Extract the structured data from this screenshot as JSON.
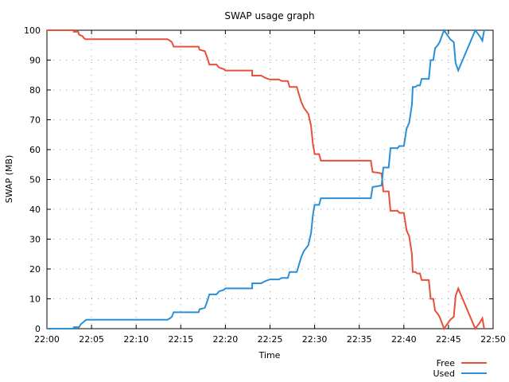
{
  "chart_data": {
    "type": "line",
    "title": "SWAP usage graph",
    "xlabel": "Time",
    "ylabel": "SWAP (MB)",
    "x_ticks": [
      "22:00",
      "22:05",
      "22:10",
      "22:15",
      "22:20",
      "22:25",
      "22:30",
      "22:35",
      "22:40",
      "22:45",
      "22:50"
    ],
    "y_ticks": [
      "0",
      "10",
      "20",
      "30",
      "40",
      "50",
      "60",
      "70",
      "80",
      "90",
      "100"
    ],
    "xlim": [
      "22:00",
      "22:50"
    ],
    "ylim": [
      0,
      100
    ],
    "grid": true,
    "legend_position": "bottom-right",
    "series": [
      {
        "name": "Free",
        "color": "#e8503a",
        "points": [
          [
            "22:00",
            100
          ],
          [
            "22:03",
            100
          ],
          [
            "22:03",
            99.5
          ],
          [
            "22:03.5",
            99.5
          ],
          [
            "22:03.6",
            98.5
          ],
          [
            "22:04",
            98
          ],
          [
            "22:04.1",
            97.5
          ],
          [
            "22:04.3",
            97
          ],
          [
            "22:13.5",
            97
          ],
          [
            "22:13.8",
            96.5
          ],
          [
            "22:14",
            96
          ],
          [
            "22:14.2",
            94.5
          ],
          [
            "22:17",
            94.5
          ],
          [
            "22:17.1",
            93.5
          ],
          [
            "22:17.7",
            93
          ],
          [
            "22:18",
            90.5
          ],
          [
            "22:18.2",
            88.5
          ],
          [
            "22:19",
            88.5
          ],
          [
            "22:19.3",
            87.5
          ],
          [
            "22:19.8",
            87
          ],
          [
            "22:20",
            86.5
          ],
          [
            "22:23",
            86.5
          ],
          [
            "22:23",
            84.8
          ],
          [
            "22:24",
            84.8
          ],
          [
            "22:24.5",
            84
          ],
          [
            "22:25",
            83.5
          ],
          [
            "22:26",
            83.5
          ],
          [
            "22:26.3",
            83
          ],
          [
            "22:27",
            83
          ],
          [
            "22:27.2",
            81
          ],
          [
            "22:28",
            81
          ],
          [
            "22:28.2",
            79
          ],
          [
            "22:28.5",
            76
          ],
          [
            "22:28.8",
            74
          ],
          [
            "22:29.3",
            72
          ],
          [
            "22:29.6",
            68
          ],
          [
            "22:29.8",
            62
          ],
          [
            "22:30",
            58.5
          ],
          [
            "22:30.5",
            58.5
          ],
          [
            "22:30.7",
            56.3
          ],
          [
            "22:36.3",
            56.3
          ],
          [
            "22:36.5",
            52.5
          ],
          [
            "22:37",
            52.3
          ],
          [
            "22:37.5",
            52
          ],
          [
            "22:37.7",
            46
          ],
          [
            "22:38.3",
            46
          ],
          [
            "22:38.5",
            39.5
          ],
          [
            "22:39.3",
            39.5
          ],
          [
            "22:39.5",
            38.8
          ],
          [
            "22:40",
            38.8
          ],
          [
            "22:40.3",
            33
          ],
          [
            "22:40.6",
            31
          ],
          [
            "22:40.9",
            25
          ],
          [
            "22:41",
            19
          ],
          [
            "22:41.3",
            19
          ],
          [
            "22:41.5",
            18.5
          ],
          [
            "22:41.8",
            18.5
          ],
          [
            "22:42",
            16.3
          ],
          [
            "22:42.8",
            16.3
          ],
          [
            "22:43",
            10
          ],
          [
            "22:43.3",
            10
          ],
          [
            "22:43.5",
            6
          ],
          [
            "22:43.8",
            5
          ],
          [
            "22:44",
            4
          ],
          [
            "22:44.5",
            0
          ],
          [
            "22:45.2",
            3
          ],
          [
            "22:45.6",
            4
          ],
          [
            "22:45.8",
            11
          ],
          [
            "22:46.1",
            13.5
          ],
          [
            "22:46.3",
            12
          ],
          [
            "22:48",
            0
          ],
          [
            "22:48.5",
            2
          ],
          [
            "22:48.8",
            3.5
          ],
          [
            "22:49",
            0
          ]
        ]
      },
      {
        "name": "Used",
        "color": "#2a8fd6",
        "points": [
          [
            "22:00",
            0
          ],
          [
            "22:03",
            0
          ],
          [
            "22:03",
            0.5
          ],
          [
            "22:03.6",
            0.5
          ],
          [
            "22:03.8",
            1.5
          ],
          [
            "22:04",
            2
          ],
          [
            "22:04.2",
            2.5
          ],
          [
            "22:04.4",
            3
          ],
          [
            "22:13.5",
            3
          ],
          [
            "22:13.8",
            3.5
          ],
          [
            "22:14",
            4
          ],
          [
            "22:14.2",
            5.5
          ],
          [
            "22:17",
            5.5
          ],
          [
            "22:17.1",
            6.5
          ],
          [
            "22:17.7",
            7
          ],
          [
            "22:18",
            9.5
          ],
          [
            "22:18.2",
            11.5
          ],
          [
            "22:19",
            11.5
          ],
          [
            "22:19.3",
            12.5
          ],
          [
            "22:19.8",
            13
          ],
          [
            "22:20",
            13.5
          ],
          [
            "22:23",
            13.5
          ],
          [
            "22:23",
            15.2
          ],
          [
            "22:24",
            15.2
          ],
          [
            "22:24.5",
            16
          ],
          [
            "22:25",
            16.5
          ],
          [
            "22:26",
            16.5
          ],
          [
            "22:26.3",
            17
          ],
          [
            "22:27",
            17
          ],
          [
            "22:27.2",
            19
          ],
          [
            "22:28",
            19
          ],
          [
            "22:28.2",
            21
          ],
          [
            "22:28.5",
            24
          ],
          [
            "22:28.8",
            26
          ],
          [
            "22:29.3",
            28
          ],
          [
            "22:29.6",
            32
          ],
          [
            "22:29.8",
            38
          ],
          [
            "22:30",
            41.5
          ],
          [
            "22:30.5",
            41.5
          ],
          [
            "22:30.7",
            43.7
          ],
          [
            "22:36.3",
            43.7
          ],
          [
            "22:36.5",
            47.5
          ],
          [
            "22:37",
            47.7
          ],
          [
            "22:37.5",
            48
          ],
          [
            "22:37.7",
            54
          ],
          [
            "22:38.3",
            54
          ],
          [
            "22:38.5",
            60.5
          ],
          [
            "22:39.3",
            60.5
          ],
          [
            "22:39.5",
            61.2
          ],
          [
            "22:40",
            61.2
          ],
          [
            "22:40.3",
            67
          ],
          [
            "22:40.6",
            69
          ],
          [
            "22:40.9",
            75
          ],
          [
            "22:41",
            81
          ],
          [
            "22:41.3",
            81
          ],
          [
            "22:41.5",
            81.5
          ],
          [
            "22:41.8",
            81.5
          ],
          [
            "22:42",
            83.7
          ],
          [
            "22:42.8",
            83.7
          ],
          [
            "22:43",
            90
          ],
          [
            "22:43.3",
            90
          ],
          [
            "22:43.5",
            94
          ],
          [
            "22:43.8",
            95
          ],
          [
            "22:44",
            96
          ],
          [
            "22:44.5",
            100
          ],
          [
            "22:45.2",
            97
          ],
          [
            "22:45.6",
            96
          ],
          [
            "22:45.8",
            89
          ],
          [
            "22:46.1",
            86.5
          ],
          [
            "22:46.3",
            88
          ],
          [
            "22:48",
            100
          ],
          [
            "22:48.5",
            98
          ],
          [
            "22:48.8",
            96.5
          ],
          [
            "22:49",
            100
          ]
        ]
      }
    ]
  }
}
